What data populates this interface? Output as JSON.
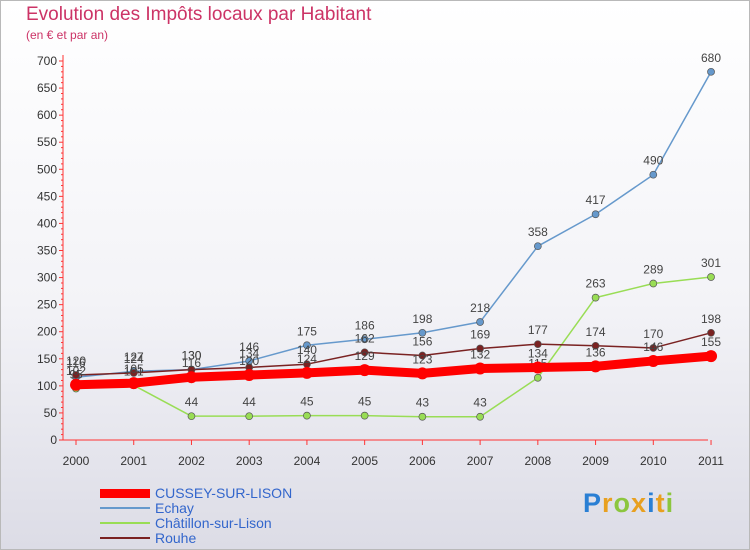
{
  "title": "Evolution des Impôts locaux par Habitant",
  "subtitle": "(en € et par an)",
  "logo": {
    "letters": [
      "P",
      "r",
      "o",
      "x",
      "i",
      "t",
      "i"
    ],
    "colors": [
      "#2a7fd4",
      "#e8a020",
      "#8cc63e",
      "#e8a020",
      "#2a7fd4",
      "#e8a020",
      "#8cc63e"
    ]
  },
  "chart_data": {
    "type": "line",
    "title": "Evolution des Impôts locaux par Habitant",
    "subtitle": "(en € et par an)",
    "xlabel": "",
    "ylabel": "",
    "x": [
      "2000",
      "2001",
      "2002",
      "2003",
      "2004",
      "2005",
      "2006",
      "2007",
      "2008",
      "2009",
      "2010",
      "2011"
    ],
    "ylim": [
      0,
      700
    ],
    "yticks": [
      "0",
      "50",
      "100",
      "150",
      "200",
      "250",
      "300",
      "350",
      "400",
      "450",
      "500",
      "550",
      "600",
      "650",
      "700"
    ],
    "grid": false,
    "legend_position": "bottom-left",
    "series": [
      {
        "name": "Echay",
        "color": "#6699cc",
        "values": [
          116,
          127,
          130,
          146,
          175,
          186,
          198,
          218,
          358,
          417,
          490,
          680
        ],
        "labels": [
          "116",
          "127",
          "130",
          "146",
          "175",
          "186",
          "198",
          "218",
          "358",
          "417",
          "490",
          "680"
        ]
      },
      {
        "name": "Châtillon-sur-Lison",
        "color": "#99dd55",
        "values": [
          95,
          101,
          44,
          44,
          45,
          45,
          43,
          43,
          115,
          263,
          289,
          301
        ],
        "labels": [
          "95",
          "101",
          "44",
          "44",
          "45",
          "45",
          "43",
          "43",
          "115",
          "263",
          "289",
          "301"
        ]
      },
      {
        "name": "Rouhe",
        "color": "#7a2222",
        "values": [
          120,
          124,
          130,
          134,
          140,
          162,
          156,
          169,
          177,
          174,
          170,
          198
        ],
        "labels": [
          "120",
          "124",
          "130",
          "134",
          "140",
          "162",
          "156",
          "169",
          "177",
          "174",
          "170",
          "198"
        ]
      },
      {
        "name": "CUSSEY-SUR-LISON",
        "color": "#ff0000",
        "values": [
          102,
          105,
          116,
          120,
          124,
          129,
          123,
          132,
          134,
          136,
          146,
          155
        ],
        "labels": [
          "102",
          "105",
          "116",
          "120",
          "124",
          "129",
          "123",
          "132",
          "134",
          "136",
          "146",
          "155"
        ]
      }
    ],
    "legend": [
      {
        "name": "CUSSEY-SUR-LISON",
        "color": "#ff0000",
        "width": 9
      },
      {
        "name": "Echay",
        "color": "#6699cc",
        "width": 2
      },
      {
        "name": "Châtillon-sur-Lison",
        "color": "#99dd55",
        "width": 2
      },
      {
        "name": "Rouhe",
        "color": "#7a2222",
        "width": 2
      }
    ]
  }
}
